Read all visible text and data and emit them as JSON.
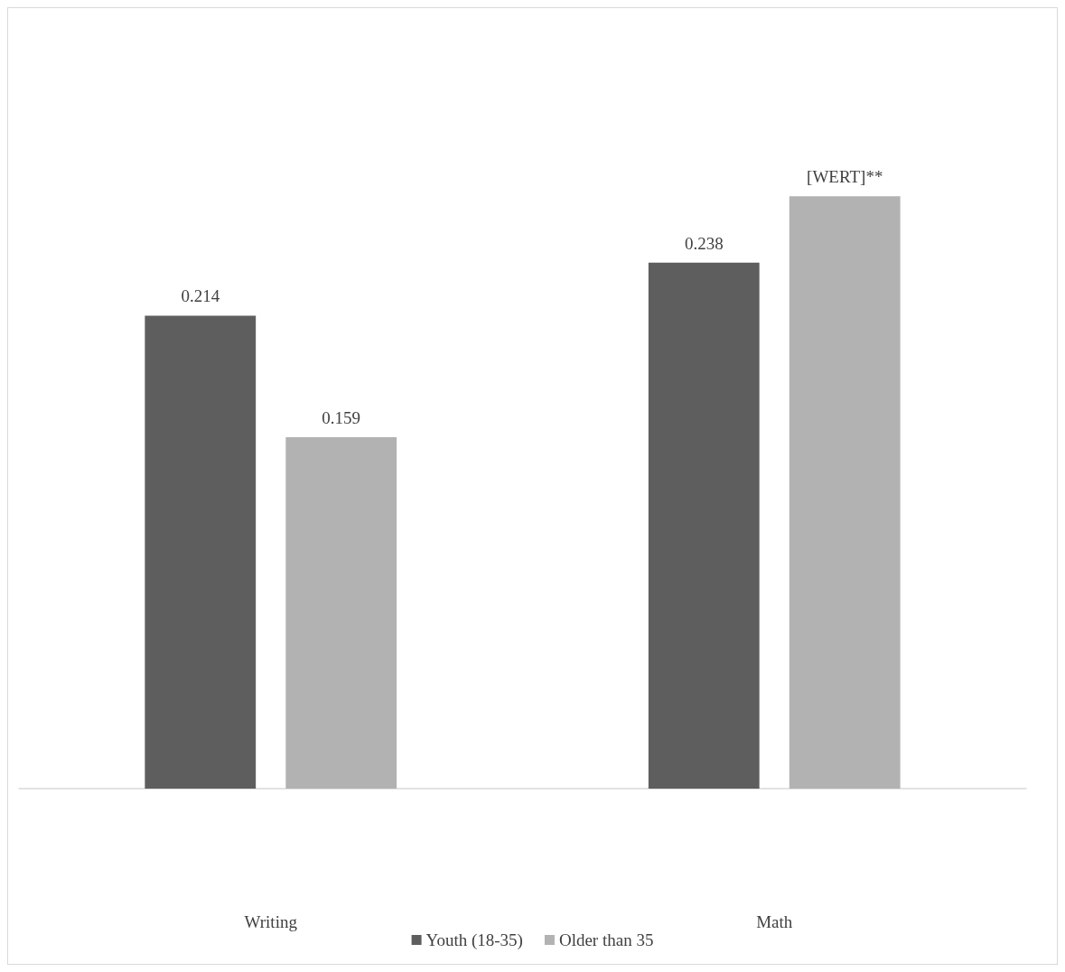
{
  "chart_data": {
    "type": "bar",
    "categories": [
      "Writing",
      "Math"
    ],
    "series": [
      {
        "name": "Youth (18-35)",
        "color": "#5e5e5e",
        "values": [
          0.214,
          0.238
        ],
        "value_labels": [
          "0.214",
          "0.238"
        ]
      },
      {
        "name": "Older than 35",
        "color": "#b2b2b2",
        "values": [
          0.159,
          0.268
        ],
        "value_labels": [
          "0.159",
          "[WERT]**"
        ]
      }
    ],
    "legend": "bottom"
  }
}
